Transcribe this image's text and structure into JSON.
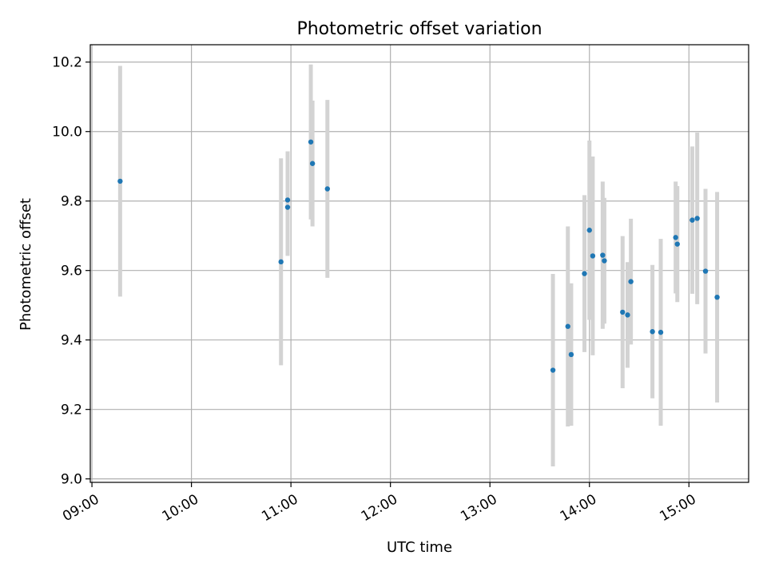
{
  "chart_data": {
    "type": "scatter",
    "title": "Photometric offset variation",
    "xlabel": "UTC time",
    "ylabel": "Photometric offset",
    "xlim": [
      "08:59",
      "15:36"
    ],
    "ylim": [
      8.99,
      10.25
    ],
    "xticks": [
      "09:00",
      "10:00",
      "11:00",
      "12:00",
      "13:00",
      "14:00",
      "15:00"
    ],
    "yticks": [
      9.0,
      9.2,
      9.4,
      9.6,
      9.8,
      10.0,
      10.2
    ],
    "grid": true,
    "colors": {
      "points": "#1f77b4",
      "errorbars": "#d3d3d3"
    },
    "points": [
      {
        "x": "09:17",
        "y": 9.857,
        "err": 0.332
      },
      {
        "x": "10:54",
        "y": 9.625,
        "err": 0.298
      },
      {
        "x": "10:58",
        "y": 9.803,
        "err": 0.14
      },
      {
        "x": "10:58",
        "y": 9.782,
        "err": 0.14
      },
      {
        "x": "11:12",
        "y": 9.97,
        "err": 0.223
      },
      {
        "x": "11:13",
        "y": 9.908,
        "err": 0.181
      },
      {
        "x": "11:22",
        "y": 9.835,
        "err": 0.256
      },
      {
        "x": "13:38",
        "y": 9.313,
        "err": 0.277
      },
      {
        "x": "13:47",
        "y": 9.439,
        "err": 0.288
      },
      {
        "x": "13:49",
        "y": 9.358,
        "err": 0.205
      },
      {
        "x": "13:57",
        "y": 9.591,
        "err": 0.226
      },
      {
        "x": "14:00",
        "y": 9.716,
        "err": 0.258
      },
      {
        "x": "14:02",
        "y": 9.642,
        "err": 0.286
      },
      {
        "x": "14:08",
        "y": 9.644,
        "err": 0.212
      },
      {
        "x": "14:09",
        "y": 9.628,
        "err": 0.181
      },
      {
        "x": "14:20",
        "y": 9.48,
        "err": 0.219
      },
      {
        "x": "14:23",
        "y": 9.472,
        "err": 0.152
      },
      {
        "x": "14:25",
        "y": 9.568,
        "err": 0.181
      },
      {
        "x": "14:38",
        "y": 9.424,
        "err": 0.192
      },
      {
        "x": "14:43",
        "y": 9.422,
        "err": 0.269
      },
      {
        "x": "14:52",
        "y": 9.695,
        "err": 0.161
      },
      {
        "x": "14:53",
        "y": 9.676,
        "err": 0.167
      },
      {
        "x": "15:02",
        "y": 9.745,
        "err": 0.212
      },
      {
        "x": "15:05",
        "y": 9.75,
        "err": 0.247
      },
      {
        "x": "15:10",
        "y": 9.598,
        "err": 0.237
      },
      {
        "x": "15:17",
        "y": 9.523,
        "err": 0.303
      }
    ]
  }
}
